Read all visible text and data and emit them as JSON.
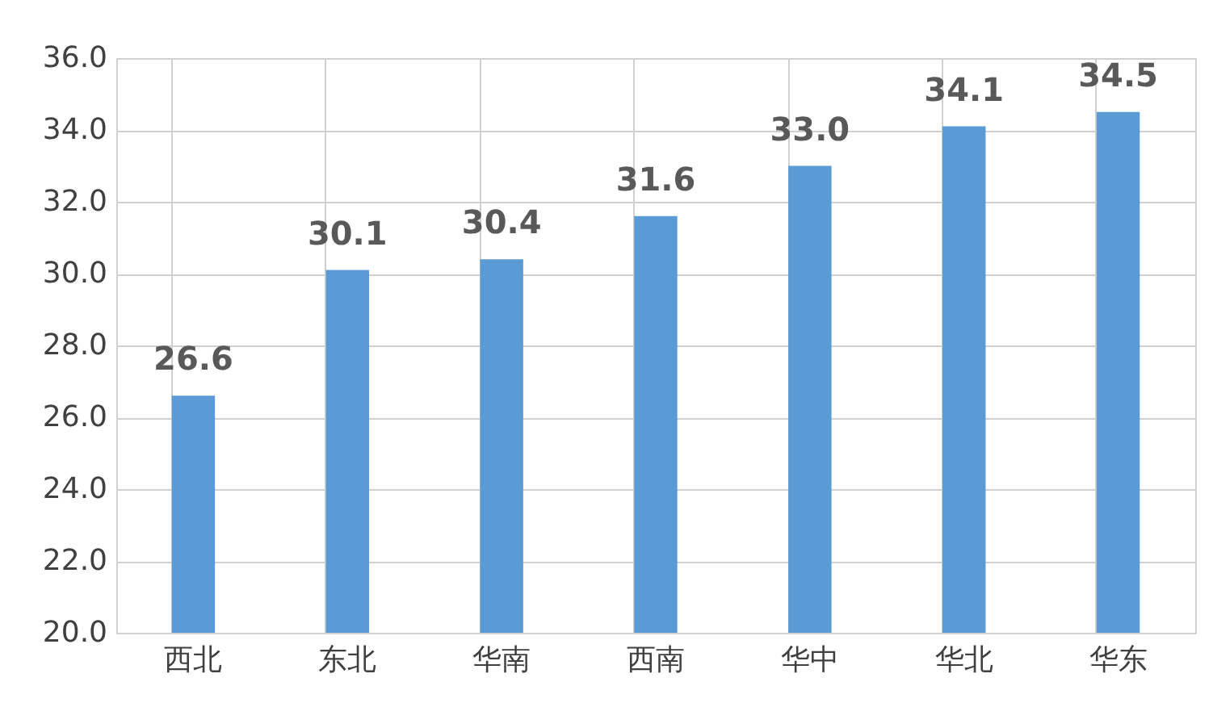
{
  "chart_data": {
    "type": "bar",
    "categories": [
      "西北",
      "东北",
      "华南",
      "西南",
      "华中",
      "华北",
      "华东"
    ],
    "values": [
      26.6,
      30.1,
      30.4,
      31.6,
      33.0,
      34.1,
      34.5
    ],
    "color": "#5b9bd5",
    "ylim": [
      20,
      36
    ],
    "yticks": [
      {
        "value": 20,
        "label": "20.0"
      },
      {
        "value": 22,
        "label": "22.0"
      },
      {
        "value": 24,
        "label": "24.0"
      },
      {
        "value": 26,
        "label": "26.0"
      },
      {
        "value": 28,
        "label": "28.0"
      },
      {
        "value": 30,
        "label": "30.0"
      },
      {
        "value": 32,
        "label": "32.0"
      },
      {
        "value": 34,
        "label": "34.0"
      },
      {
        "value": 36,
        "label": "36.0"
      }
    ],
    "value_labels": [
      "26.6",
      "30.1",
      "30.4",
      "31.6",
      "33.0",
      "34.1",
      "34.5"
    ],
    "grid": true
  }
}
